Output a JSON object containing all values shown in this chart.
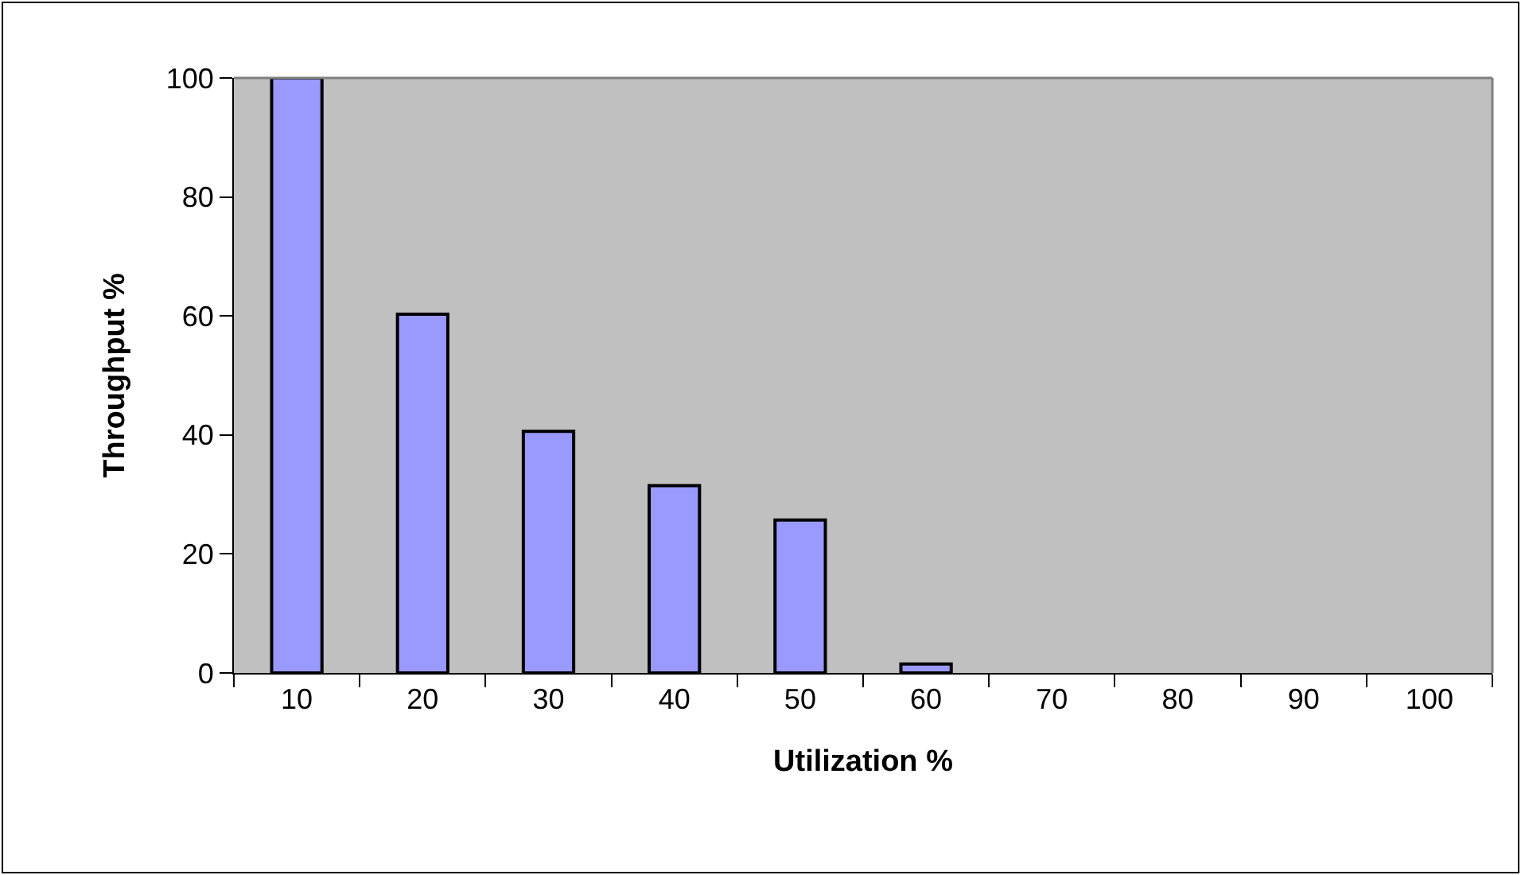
{
  "chart_data": {
    "type": "bar",
    "xlabel": "Utilization %",
    "ylabel": "Throughput %",
    "categories": [
      "10",
      "20",
      "30",
      "40",
      "50",
      "60",
      "70",
      "80",
      "90",
      "100"
    ],
    "values": [
      100,
      60.3,
      40.6,
      31.5,
      25.7,
      1.5,
      0,
      0,
      0,
      0
    ],
    "color": "#9999ff",
    "ylim": [
      0,
      100
    ],
    "yticks": [
      0,
      20,
      40,
      60,
      80,
      100
    ],
    "grid": false,
    "legend": false
  }
}
